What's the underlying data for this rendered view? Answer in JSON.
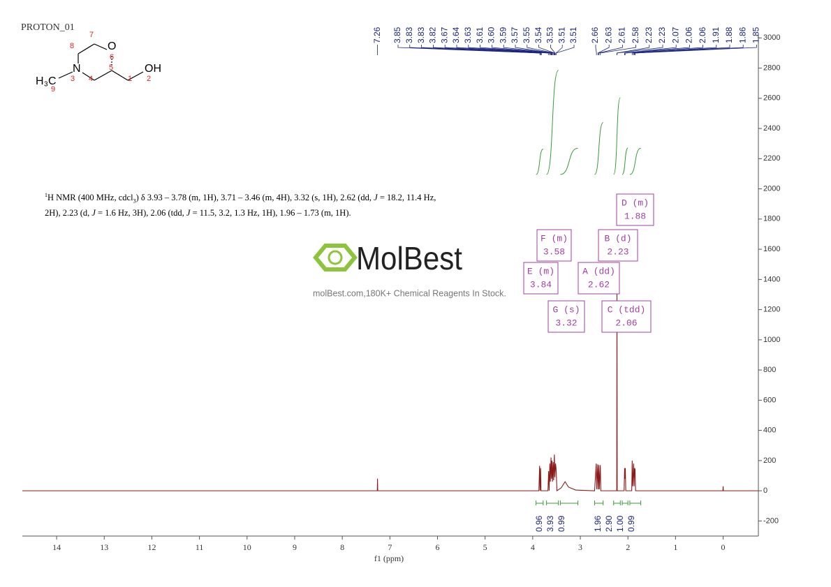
{
  "title": "PROTON_01",
  "structure": {
    "atoms": [
      "O",
      "N",
      "OH",
      "H",
      "3",
      "C"
    ],
    "numbers": [
      "1",
      "2",
      "3",
      "4",
      "5",
      "6",
      "7",
      "8",
      "9"
    ]
  },
  "description_parts": [
    "1",
    "H NMR (400 MHz, cdcl",
    "3",
    ") δ 3.93 – 3.78 (m, 1H), 3.71 – 3.46 (m, 4H), 3.32 (s, 1H), 2.62 (dd, ",
    "J",
    " = 18.2, 11.4 Hz, 2H), 2.23 (d, ",
    "J",
    " = 1.6 Hz, 3H), 2.06 (tdd, ",
    "J",
    " = 11.5, 3.2, 1.3 Hz, 1H), 1.96 – 1.73 (m, 1H)."
  ],
  "watermark": {
    "logo": "MolBest",
    "text": "molBest.com,180K+ Chemical Reagents In Stock."
  },
  "chart_data": {
    "type": "line",
    "x_label": "f1 (ppm)",
    "xlim": [
      14.72,
      -0.74
    ],
    "xticks": [
      14,
      13,
      12,
      11,
      10,
      9,
      8,
      7,
      6,
      5,
      4,
      3,
      2,
      1,
      0
    ],
    "ylim": [
      -300,
      3020
    ],
    "yticks": [
      -200,
      0,
      200,
      400,
      600,
      800,
      1000,
      1200,
      1400,
      1600,
      1800,
      2000,
      2200,
      2400,
      2600,
      2800,
      3000
    ],
    "series": [
      {
        "color": "#8b1a1a",
        "x": [
          14.72,
          7.265,
          7.26,
          7.255,
          3.87,
          3.855,
          3.845,
          3.835,
          3.825,
          3.68,
          3.665,
          3.655,
          3.64,
          3.63,
          3.615,
          3.605,
          3.595,
          3.585,
          3.57,
          3.56,
          3.545,
          3.535,
          3.52,
          3.51,
          3.49,
          3.4,
          3.32,
          3.25,
          3.1,
          2.7,
          2.665,
          2.655,
          2.635,
          2.625,
          2.61,
          2.6,
          2.58,
          2.57,
          2.235,
          2.23,
          2.225,
          2.08,
          2.07,
          2.06,
          2.055,
          2.045,
          1.92,
          1.91,
          1.9,
          1.88,
          1.87,
          1.86,
          1.85,
          1.84,
          0.005,
          0,
          -0.005,
          -0.74
        ],
        "values": [
          0,
          0,
          80,
          0,
          0,
          165,
          0,
          150,
          0,
          0,
          130,
          0,
          180,
          60,
          220,
          80,
          200,
          60,
          190,
          70,
          240,
          90,
          180,
          150,
          0,
          20,
          60,
          25,
          5,
          0,
          180,
          10,
          175,
          10,
          170,
          10,
          170,
          0,
          0,
          1380,
          0,
          0,
          150,
          80,
          150,
          0,
          0,
          200,
          30,
          180,
          30,
          150,
          140,
          0,
          0,
          30,
          0,
          0
        ]
      }
    ],
    "peak_labels": [
      {
        "value": 7.26,
        "label": "7.26"
      },
      {
        "value": 3.85,
        "label": "3.85"
      },
      {
        "value": 3.83,
        "label": "3.83"
      },
      {
        "value": 3.83,
        "label": "3.83"
      },
      {
        "value": 3.82,
        "label": "3.82"
      },
      {
        "value": 3.67,
        "label": "3.67"
      },
      {
        "value": 3.64,
        "label": "3.64"
      },
      {
        "value": 3.63,
        "label": "3.63"
      },
      {
        "value": 3.61,
        "label": "3.61"
      },
      {
        "value": 3.6,
        "label": "3.60"
      },
      {
        "value": 3.59,
        "label": "3.59"
      },
      {
        "value": 3.57,
        "label": "3.57"
      },
      {
        "value": 3.55,
        "label": "3.55"
      },
      {
        "value": 3.54,
        "label": "3.54"
      },
      {
        "value": 3.53,
        "label": "3.53"
      },
      {
        "value": 3.51,
        "label": "3.51"
      },
      {
        "value": 3.51,
        "label": "3.51"
      },
      {
        "value": 2.66,
        "label": "2.66"
      },
      {
        "value": 2.63,
        "label": "2.63"
      },
      {
        "value": 2.61,
        "label": "2.61"
      },
      {
        "value": 2.58,
        "label": "2.58"
      },
      {
        "value": 2.23,
        "label": "2.23"
      },
      {
        "value": 2.23,
        "label": "2.23"
      },
      {
        "value": 2.07,
        "label": "2.07"
      },
      {
        "value": 2.06,
        "label": "2.06"
      },
      {
        "value": 2.06,
        "label": "2.06"
      },
      {
        "value": 1.91,
        "label": "1.91"
      },
      {
        "value": 1.88,
        "label": "1.88"
      },
      {
        "value": 1.86,
        "label": "1.86"
      },
      {
        "value": 1.85,
        "label": "1.85"
      }
    ],
    "integrals": [
      {
        "range": [
          3.93,
          3.78
        ],
        "value": 0.96,
        "label": "0.96"
      },
      {
        "range": [
          3.71,
          3.46
        ],
        "value": 3.93,
        "label": "3.93"
      },
      {
        "range": [
          3.42,
          3.05
        ],
        "value": 0.99,
        "label": "0.99"
      },
      {
        "range": [
          2.7,
          2.52
        ],
        "value": 1.96,
        "label": "1.96"
      },
      {
        "range": [
          2.3,
          2.16
        ],
        "value": 2.9,
        "label": "2.90"
      },
      {
        "range": [
          2.12,
          2.0
        ],
        "value": 1.0,
        "label": "1.00"
      },
      {
        "range": [
          1.96,
          1.73
        ],
        "value": 0.99,
        "label": "0.99"
      }
    ],
    "multiplets": [
      {
        "label": "A (dd)",
        "shift": "2.62"
      },
      {
        "label": "B (d)",
        "shift": "2.23"
      },
      {
        "label": "C (tdd)",
        "shift": "2.06"
      },
      {
        "label": "D (m)",
        "shift": "1.88"
      },
      {
        "label": "E (m)",
        "shift": "3.84"
      },
      {
        "label": "F (m)",
        "shift": "3.58"
      },
      {
        "label": "G (s)",
        "shift": "3.32"
      }
    ]
  }
}
